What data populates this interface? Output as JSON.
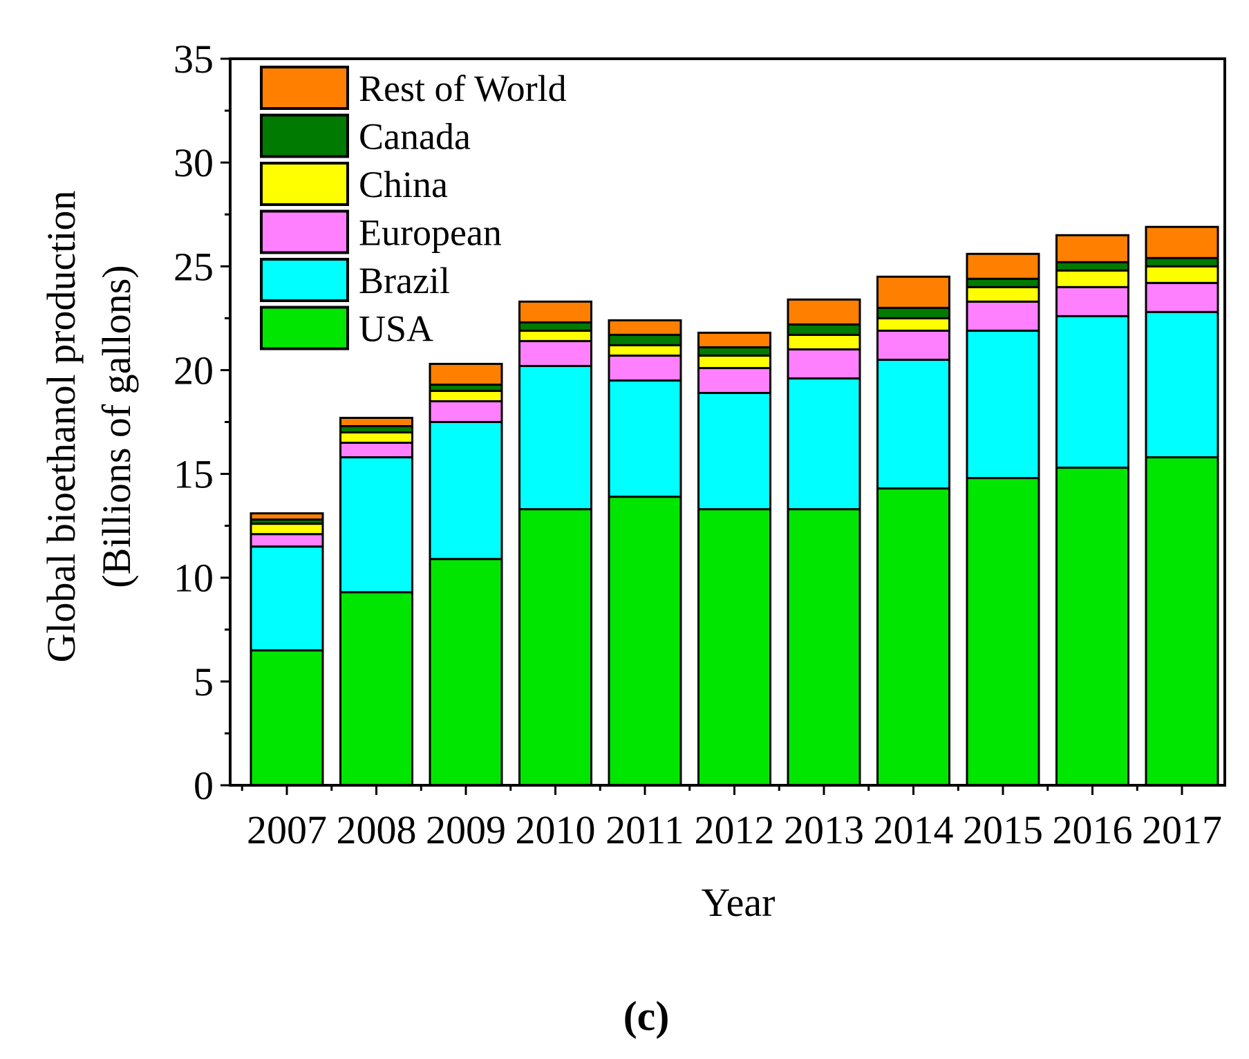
{
  "panel_label": "(c)",
  "chart_data": {
    "type": "bar",
    "stacked": true,
    "title": "",
    "xlabel": "Year",
    "ylabel": [
      "Global bioethanol production",
      "(Billions of gallons)"
    ],
    "ylim": [
      0,
      35
    ],
    "yticks": [
      0,
      5,
      10,
      15,
      20,
      25,
      30,
      35
    ],
    "categories": [
      "2007",
      "2008",
      "2009",
      "2010",
      "2011",
      "2012",
      "2013",
      "2014",
      "2015",
      "2016",
      "2017"
    ],
    "series": [
      {
        "name": "USA",
        "color": "#00e600",
        "values": [
          6.5,
          9.3,
          10.9,
          13.3,
          13.9,
          13.3,
          13.3,
          14.3,
          14.8,
          15.3,
          15.8
        ]
      },
      {
        "name": "Brazil",
        "color": "#00ffff",
        "values": [
          5.0,
          6.5,
          6.6,
          6.9,
          5.6,
          5.6,
          6.3,
          6.2,
          7.1,
          7.3,
          7.0
        ]
      },
      {
        "name": "European",
        "color": "#ff80ff",
        "values": [
          0.6,
          0.7,
          1.0,
          1.2,
          1.2,
          1.2,
          1.4,
          1.4,
          1.4,
          1.4,
          1.4
        ]
      },
      {
        "name": "China",
        "color": "#ffff00",
        "values": [
          0.5,
          0.5,
          0.5,
          0.5,
          0.5,
          0.6,
          0.7,
          0.6,
          0.7,
          0.8,
          0.8
        ]
      },
      {
        "name": "Canada",
        "color": "#007a00",
        "values": [
          0.2,
          0.3,
          0.3,
          0.4,
          0.5,
          0.4,
          0.5,
          0.5,
          0.4,
          0.4,
          0.4
        ]
      },
      {
        "name": "Rest of World",
        "color": "#ff8000",
        "values": [
          0.3,
          0.4,
          1.0,
          1.0,
          0.7,
          0.7,
          1.2,
          1.5,
          1.2,
          1.3,
          1.5
        ]
      }
    ],
    "legend_order": [
      "Rest of World",
      "Canada",
      "China",
      "European",
      "Brazil",
      "USA"
    ],
    "legend_position": "top-left"
  }
}
